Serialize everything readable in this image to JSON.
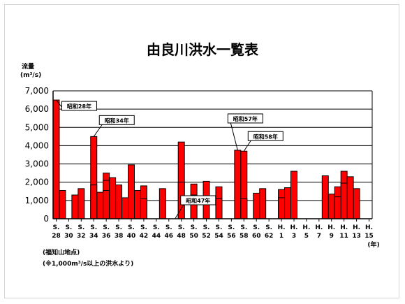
{
  "chart_data": {
    "type": "bar",
    "title": "由良川洪水一覧表",
    "ylabel_line1": "流量",
    "ylabel_line2": "(m³/s)",
    "xunit": "(年)",
    "ylim": [
      0,
      7000
    ],
    "yticks": [
      0,
      1000,
      2000,
      3000,
      4000,
      5000,
      6000,
      7000
    ],
    "ytick_labels": [
      "0",
      "1,000",
      "2,000",
      "3,000",
      "4,000",
      "5,000",
      "6,000",
      "7,000"
    ],
    "grid": true,
    "bar_color": "#ff0000",
    "categories": [
      "S28",
      "S29",
      "S30",
      "S31",
      "S32",
      "S33",
      "S34",
      "S35",
      "S36",
      "S37",
      "S38",
      "S39",
      "S40",
      "S41",
      "S42",
      "S43",
      "S44",
      "S45",
      "S46",
      "S47",
      "S48",
      "S49",
      "S50",
      "S51",
      "S52",
      "S53",
      "S54",
      "S55",
      "S56",
      "S57",
      "S58",
      "S59",
      "S60",
      "S61",
      "S62",
      "S63",
      "H1",
      "H2",
      "H3",
      "H4",
      "H5",
      "H6",
      "H7",
      "H8",
      "H9",
      "H10",
      "H11",
      "H12",
      "H13",
      "H14",
      "H15"
    ],
    "tick_labels": [
      {
        "top": "S.",
        "bottom": "28"
      },
      {
        "top": "S.",
        "bottom": "30"
      },
      {
        "top": "S.",
        "bottom": "32"
      },
      {
        "top": "S.",
        "bottom": "34"
      },
      {
        "top": "S.",
        "bottom": "36"
      },
      {
        "top": "S.",
        "bottom": "38"
      },
      {
        "top": "S.",
        "bottom": "40"
      },
      {
        "top": "S.",
        "bottom": "42"
      },
      {
        "top": "S.",
        "bottom": "44"
      },
      {
        "top": "S.",
        "bottom": "46"
      },
      {
        "top": "S.",
        "bottom": "48"
      },
      {
        "top": "S.",
        "bottom": "50"
      },
      {
        "top": "S.",
        "bottom": "52"
      },
      {
        "top": "S.",
        "bottom": "54"
      },
      {
        "top": "S.",
        "bottom": "56"
      },
      {
        "top": "S.",
        "bottom": "58"
      },
      {
        "top": "S.",
        "bottom": "60"
      },
      {
        "top": "S.",
        "bottom": "62"
      },
      {
        "top": "H.",
        "bottom": "1"
      },
      {
        "top": "H.",
        "bottom": "3"
      },
      {
        "top": "H.",
        "bottom": "5"
      },
      {
        "top": "H.",
        "bottom": "7"
      },
      {
        "top": "H.",
        "bottom": "9"
      },
      {
        "top": "H.",
        "bottom": "11"
      },
      {
        "top": "H.",
        "bottom": "13"
      },
      {
        "top": "H.",
        "bottom": "15"
      }
    ],
    "series": [
      {
        "values": [
          6500,
          1550,
          null,
          1300,
          1650,
          null,
          4500,
          1450,
          2500,
          2250,
          1850,
          1150,
          2950,
          1550,
          1800,
          null,
          null,
          1650,
          null,
          null,
          4200,
          null,
          1900,
          null,
          2050,
          null,
          1750,
          null,
          null,
          3750,
          3700,
          null,
          1400,
          1650,
          null,
          null,
          1600,
          1700,
          2600,
          null,
          null,
          null,
          null,
          2350,
          1350,
          1750,
          2600,
          2300,
          1650,
          null,
          null
        ]
      },
      {
        "values": [
          null,
          null,
          null,
          null,
          null,
          null,
          1850,
          null,
          2100,
          null,
          null,
          null,
          null,
          null,
          1100,
          null,
          null,
          null,
          null,
          null,
          2000,
          null,
          1300,
          null,
          null,
          null,
          1100,
          null,
          null,
          null,
          1100,
          null,
          null,
          null,
          null,
          null,
          1150,
          null,
          null,
          null,
          null,
          null,
          null,
          null,
          null,
          1200,
          1950,
          null,
          null,
          null,
          null
        ]
      },
      {
        "values": [
          null,
          null,
          null,
          null,
          null,
          null,
          null,
          null,
          1550,
          null,
          null,
          null,
          null,
          null,
          null,
          null,
          null,
          null,
          null,
          null,
          null,
          null,
          null,
          null,
          null,
          null,
          null,
          null,
          null,
          null,
          null,
          null,
          null,
          null,
          null,
          null,
          null,
          null,
          null,
          null,
          null,
          null,
          null,
          null,
          null,
          null,
          null,
          null,
          null,
          null,
          null
        ]
      }
    ],
    "annotations": [
      {
        "text": "昭和28年",
        "category": "S28"
      },
      {
        "text": "昭和34年",
        "category": "S34"
      },
      {
        "text": "昭和47年",
        "category": "S47"
      },
      {
        "text": "昭和57年",
        "category": "S57"
      },
      {
        "text": "昭和58年",
        "category": "S58"
      }
    ],
    "notes": [
      "(福知山地点)",
      "(※1,000m³/s以上の洪水より)"
    ]
  }
}
